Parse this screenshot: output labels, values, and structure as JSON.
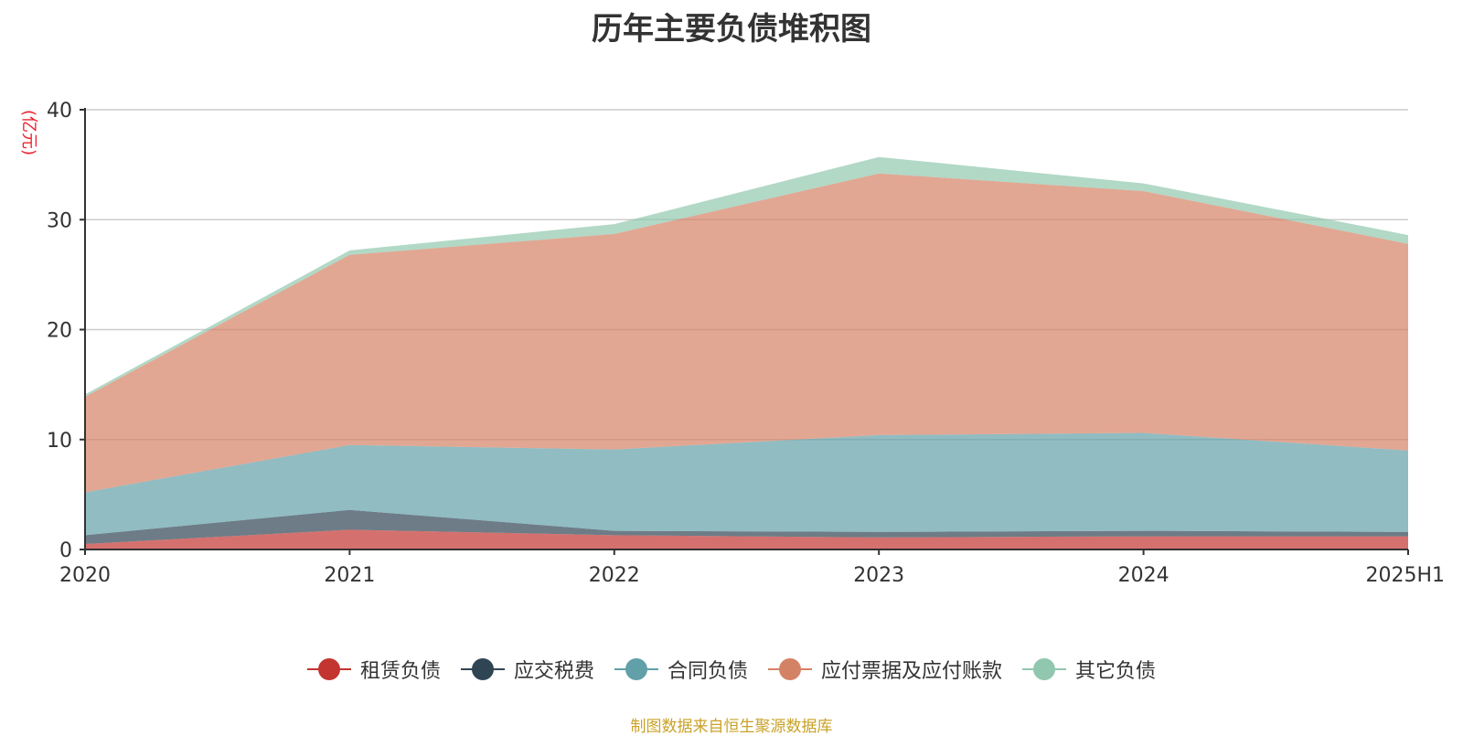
{
  "chart_data": {
    "type": "area",
    "stacked": true,
    "title": "历年主要负债堆积图",
    "ylabel": "(亿元)",
    "xlabel": "",
    "categories": [
      "2020",
      "2021",
      "2022",
      "2023",
      "2024",
      "2025H1"
    ],
    "ylim": [
      0,
      40
    ],
    "yticks": [
      "0",
      "10",
      "20",
      "30",
      "40"
    ],
    "grid": true,
    "legend_position": "bottom",
    "series": [
      {
        "name": "租赁负债",
        "color": "#c23531",
        "values": [
          0.5,
          1.8,
          1.3,
          1.1,
          1.2,
          1.2
        ]
      },
      {
        "name": "应交税费",
        "color": "#2f4554",
        "values": [
          0.8,
          1.8,
          0.4,
          0.5,
          0.5,
          0.4
        ]
      },
      {
        "name": "合同负债",
        "color": "#61a0a8",
        "values": [
          3.9,
          5.9,
          7.4,
          8.8,
          8.9,
          7.4
        ]
      },
      {
        "name": "应付票据及应付账款",
        "color": "#d48265",
        "values": [
          8.7,
          17.3,
          19.6,
          23.8,
          22.0,
          18.8
        ]
      },
      {
        "name": "其它负债",
        "color": "#91c7ae",
        "values": [
          0.2,
          0.4,
          0.9,
          1.5,
          0.7,
          0.8
        ]
      }
    ]
  },
  "source": {
    "text": "制图数据来自恒生聚源数据库",
    "color": "#c9a227"
  },
  "ylabel_color": "#e8222c"
}
